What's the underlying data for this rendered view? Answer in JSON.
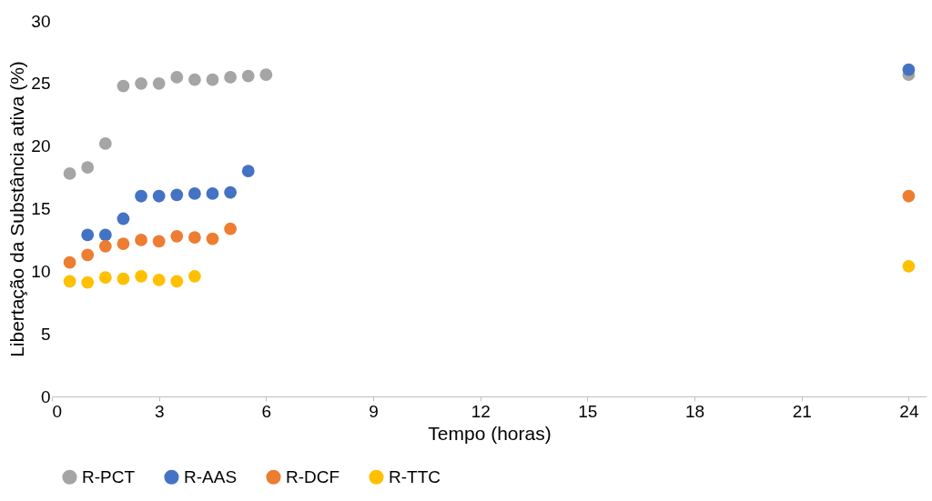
{
  "chart_data": {
    "type": "scatter",
    "xlabel": "Tempo (horas)",
    "ylabel": "Libertação da Substância ativa (%)",
    "xlim": [
      0,
      24.5
    ],
    "xticks": [
      0,
      3,
      6,
      9,
      12,
      15,
      18,
      21,
      24
    ],
    "ylim": [
      0,
      30
    ],
    "yticks": [
      0,
      5,
      10,
      15,
      20,
      25,
      30
    ],
    "grid": false,
    "legend": "bottom",
    "marker": "circle",
    "series": [
      {
        "name": "R-PCT",
        "color": "#a5a5a5",
        "x": [
          0.5,
          1,
          1.5,
          2,
          2.5,
          3,
          3.5,
          4,
          4.5,
          5,
          5.5,
          6,
          24
        ],
        "values": [
          17.8,
          18.3,
          20.2,
          24.8,
          25.0,
          25.0,
          25.5,
          25.3,
          25.3,
          25.5,
          25.6,
          25.7,
          25.7
        ]
      },
      {
        "name": "R-AAS",
        "color": "#4472c4",
        "x": [
          1,
          1.5,
          2,
          2.5,
          3,
          3.5,
          4,
          4.5,
          5,
          5.5,
          24
        ],
        "values": [
          12.9,
          12.9,
          14.2,
          16.0,
          16.0,
          16.1,
          16.2,
          16.2,
          16.3,
          18.0,
          26.1
        ]
      },
      {
        "name": "R-DCF",
        "color": "#ed7d31",
        "x": [
          0.5,
          1,
          1.5,
          2,
          2.5,
          3,
          3.5,
          4,
          4.5,
          5,
          24
        ],
        "values": [
          10.7,
          11.3,
          12.0,
          12.2,
          12.5,
          12.4,
          12.8,
          12.7,
          12.6,
          13.4,
          16.0
        ]
      },
      {
        "name": "R-TTC",
        "color": "#ffc000",
        "x": [
          0.5,
          1,
          1.5,
          2,
          2.5,
          3,
          3.5,
          4,
          24
        ],
        "values": [
          9.2,
          9.1,
          9.5,
          9.4,
          9.6,
          9.3,
          9.2,
          9.6,
          10.4
        ]
      }
    ]
  }
}
